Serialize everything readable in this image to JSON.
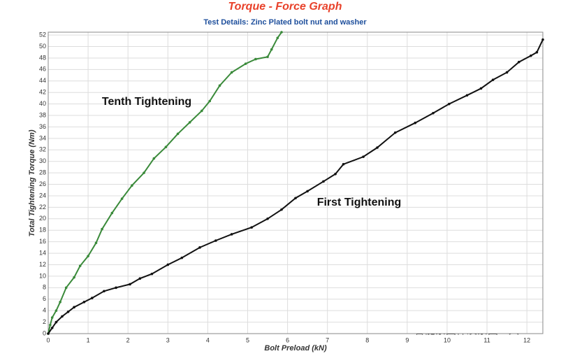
{
  "chart_data": {
    "type": "line",
    "title": "Torque - Force Graph",
    "subtitle": "Test Details: Zinc Plated bolt nut and washer",
    "xlabel": "Bolt Preload (kN)",
    "ylabel": "Total Tightening Torque (Nm)",
    "watermark": "智能紧固件及紧固工具",
    "xlim": [
      0,
      12.4
    ],
    "ylim": [
      0,
      52.5
    ],
    "xticks": [
      0,
      1,
      2,
      3,
      4,
      5,
      6,
      7,
      8,
      9,
      10,
      11,
      12
    ],
    "yticks": [
      0,
      2,
      4,
      6,
      8,
      10,
      12,
      14,
      16,
      18,
      20,
      22,
      24,
      26,
      28,
      30,
      32,
      34,
      36,
      38,
      40,
      42,
      44,
      46,
      48,
      50,
      52
    ],
    "grid": true,
    "series": [
      {
        "name": "Tenth Tightening",
        "color": "#3a8a3a",
        "x": [
          0,
          0.05,
          0.1,
          0.2,
          0.3,
          0.45,
          0.65,
          0.8,
          1,
          1.2,
          1.35,
          1.6,
          1.85,
          2.1,
          2.4,
          2.65,
          2.95,
          3.25,
          3.55,
          3.85,
          4.05,
          4.3,
          4.6,
          4.95,
          5.2,
          5.5,
          5.6,
          5.75,
          5.85
        ],
        "values": [
          0,
          1.5,
          2.8,
          4,
          5.5,
          8,
          9.8,
          11.8,
          13.5,
          15.8,
          18.2,
          21,
          23.5,
          25.8,
          28,
          30.5,
          32.5,
          34.8,
          36.8,
          38.8,
          40.5,
          43.2,
          45.5,
          47,
          47.8,
          48.2,
          49.5,
          51.5,
          52.5
        ]
      },
      {
        "name": "First Tightening",
        "color": "#111111",
        "x": [
          0,
          0.1,
          0.2,
          0.35,
          0.5,
          0.65,
          0.9,
          1.1,
          1.4,
          1.7,
          2.05,
          2.3,
          2.6,
          3,
          3.35,
          3.8,
          4.2,
          4.6,
          5.1,
          5.5,
          5.85,
          6.2,
          6.5,
          6.9,
          7.2,
          7.4,
          7.9,
          8.25,
          8.7,
          9.2,
          9.65,
          10.05,
          10.5,
          10.85,
          11.15,
          11.5,
          11.8,
          12.1,
          12.25,
          12.4
        ],
        "values": [
          0,
          1,
          2,
          3,
          3.8,
          4.6,
          5.5,
          6.2,
          7.4,
          8,
          8.6,
          9.6,
          10.4,
          12,
          13.2,
          15,
          16.2,
          17.3,
          18.5,
          20,
          21.6,
          23.6,
          24.8,
          26.5,
          27.8,
          29.5,
          30.8,
          32.4,
          35,
          36.7,
          38.4,
          40,
          41.5,
          42.7,
          44.2,
          45.5,
          47.3,
          48.4,
          49,
          51.2
        ]
      }
    ]
  }
}
